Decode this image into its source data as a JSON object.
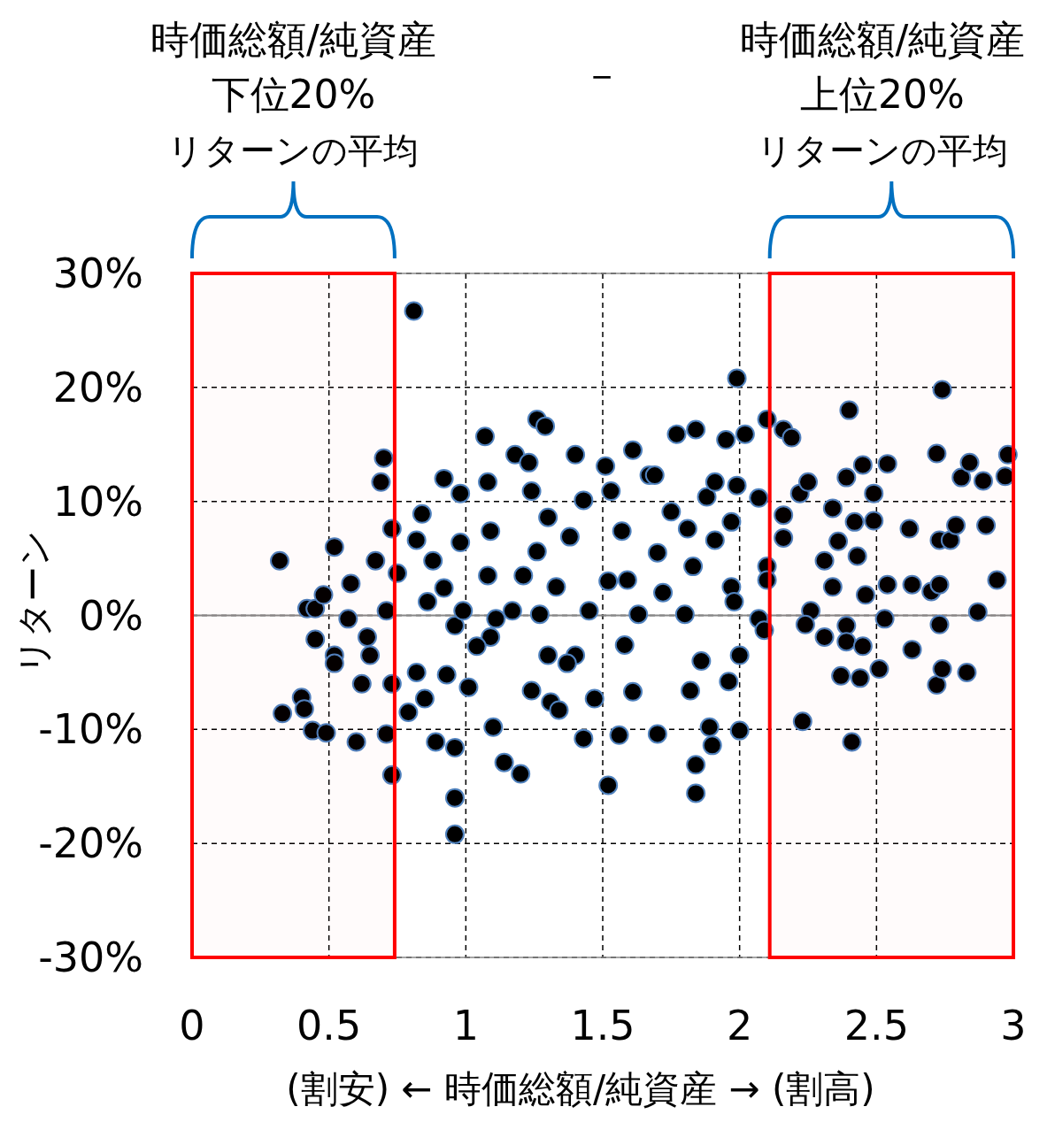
{
  "chart_data": {
    "type": "scatter",
    "xlabel": "(割安) ← 時価総額/純資産 → (割高)",
    "ylabel": "リターン",
    "annotations": [
      "時価総額/純資産下位20%",
      "リターンの平均",
      "－",
      "時価総額/純資産上位20%",
      "リターンの平均"
    ],
    "xlim": [
      0,
      3
    ],
    "ylim": [
      -30,
      30
    ],
    "xticks": [
      0,
      0.5,
      1,
      1.5,
      2,
      2.5,
      3
    ],
    "yticks": [
      {
        "value": -30,
        "label": "-30%"
      },
      {
        "value": -20,
        "label": "-20%"
      },
      {
        "value": -10,
        "label": "-10%"
      },
      {
        "value": 0,
        "label": "0%"
      },
      {
        "value": 10,
        "label": "10%"
      },
      {
        "value": 20,
        "label": "20%"
      },
      {
        "value": 30,
        "label": "30%"
      }
    ],
    "grid": true,
    "marker": "circle",
    "bands": [
      {
        "axis": "x",
        "from": 0,
        "to": 0.74,
        "color": "#ff0000"
      },
      {
        "axis": "x",
        "from": 2.11,
        "to": 3,
        "color": "#ff0000"
      }
    ],
    "series": [
      {
        "color": "#000000",
        "x": [
          0.32,
          0.33,
          0.4,
          0.41,
          0.42,
          0.45,
          0.45,
          0.44,
          0.49,
          0.48,
          0.52,
          0.52,
          0.52,
          0.58,
          0.57,
          0.6,
          0.62,
          0.64,
          0.65,
          0.67,
          0.69,
          0.7,
          0.71,
          0.71,
          0.73,
          0.75,
          0.73,
          0.73,
          0.81,
          0.79,
          0.82,
          0.84,
          0.86,
          0.88,
          0.89,
          0.92,
          0.93,
          0.96,
          0.96,
          0.96,
          0.96,
          0.98,
          0.99,
          1.01,
          1.07,
          1.08,
          1.09,
          1.08,
          1.09,
          1.1,
          1.14,
          1.18,
          1.2,
          1.17,
          1.23,
          1.24,
          1.26,
          1.29,
          1.26,
          1.27,
          1.3,
          1.3,
          1.31,
          1.33,
          1.34,
          1.4,
          1.38,
          1.4,
          1.43,
          1.43,
          1.45,
          1.47,
          1.51,
          1.52,
          1.53,
          1.52,
          1.56,
          1.57,
          1.58,
          1.61,
          1.61,
          1.59,
          1.63,
          1.67,
          1.69,
          1.7,
          1.7,
          1.72,
          1.75,
          1.77,
          1.84,
          1.81,
          1.8,
          1.83,
          1.84,
          1.84,
          1.82,
          1.86,
          1.88,
          1.89,
          1.9,
          1.91,
          1.91,
          1.95,
          1.97,
          1.97,
          1.96,
          1.99,
          1.99,
          2.0,
          2.0,
          1.98,
          2.02,
          2.07,
          2.07,
          2.1,
          2.09,
          2.1,
          2.1,
          2.16,
          2.16,
          2.16,
          2.19,
          2.22,
          2.25,
          2.23,
          2.26,
          2.24,
          2.31,
          2.34,
          2.31,
          2.34,
          2.36,
          2.37,
          2.39,
          2.4,
          2.39,
          2.39,
          2.41,
          2.42,
          2.43,
          2.44,
          2.45,
          2.45,
          2.46,
          2.49,
          2.49,
          2.51,
          2.53,
          2.54,
          2.54,
          2.62,
          2.63,
          2.63,
          2.7,
          2.72,
          2.73,
          2.72,
          2.74,
          2.73,
          2.74,
          2.73,
          2.77,
          2.79,
          2.81,
          2.84,
          2.83,
          2.87,
          2.89,
          2.9,
          2.94,
          2.98,
          2.97,
          0.92,
          0.98,
          1.11,
          1.21,
          1.37,
          1.24,
          0.82,
          0.85,
          1.04
        ],
        "values": [
          4.8,
          -8.6,
          -7.2,
          -8.2,
          0.6,
          0.6,
          -2.1,
          -10.1,
          -10.3,
          1.8,
          6.0,
          -3.5,
          -4.2,
          2.8,
          -0.3,
          -11.1,
          -6.0,
          -1.9,
          -3.5,
          4.8,
          11.7,
          13.8,
          0.4,
          -10.4,
          7.6,
          3.7,
          -14.0,
          -6.0,
          26.7,
          -8.5,
          6.6,
          8.9,
          1.2,
          4.8,
          -11.1,
          12.0,
          -5.2,
          -16.0,
          -19.2,
          -11.6,
          -0.9,
          10.7,
          0.4,
          -6.3,
          15.7,
          11.7,
          7.4,
          3.5,
          -1.9,
          -9.8,
          -12.9,
          14.1,
          -13.9,
          0.4,
          13.4,
          10.9,
          17.2,
          16.6,
          5.6,
          0.1,
          8.6,
          -3.5,
          -7.6,
          2.5,
          -8.3,
          14.1,
          6.9,
          -3.5,
          10.1,
          -10.8,
          0.4,
          -7.3,
          13.1,
          -14.9,
          10.9,
          3.0,
          -10.5,
          7.4,
          -2.6,
          14.5,
          -6.7,
          3.1,
          0.1,
          12.3,
          12.3,
          5.5,
          -10.4,
          2.0,
          9.1,
          15.9,
          16.3,
          7.6,
          0.1,
          4.3,
          -15.6,
          -13.1,
          -6.6,
          -4.0,
          10.4,
          -9.8,
          -11.4,
          11.7,
          6.6,
          15.4,
          8.2,
          2.5,
          -5.8,
          20.8,
          11.4,
          -3.5,
          -10.1,
          1.2,
          15.9,
          10.3,
          -0.3,
          17.2,
          -1.3,
          4.3,
          3.1,
          16.3,
          8.8,
          6.8,
          15.6,
          10.7,
          11.7,
          -9.3,
          0.4,
          -0.8,
          -1.9,
          9.4,
          4.8,
          2.5,
          6.5,
          -5.3,
          12.1,
          18.0,
          -0.9,
          -2.3,
          -11.1,
          8.2,
          5.2,
          -5.5,
          13.2,
          -2.7,
          1.8,
          10.7,
          8.3,
          -4.7,
          -0.3,
          13.3,
          2.7,
          7.6,
          -3.0,
          2.7,
          2.1,
          -6.1,
          -0.8,
          14.2,
          19.8,
          2.7,
          -4.7,
          6.6,
          6.6,
          7.9,
          12.1,
          13.4,
          -5.0,
          0.3,
          11.8,
          7.9,
          3.1,
          14.1,
          12.2,
          2.4,
          6.4,
          -0.3,
          3.5,
          -4.2,
          -6.6,
          -5.0,
          -7.3,
          -2.7
        ]
      }
    ]
  }
}
